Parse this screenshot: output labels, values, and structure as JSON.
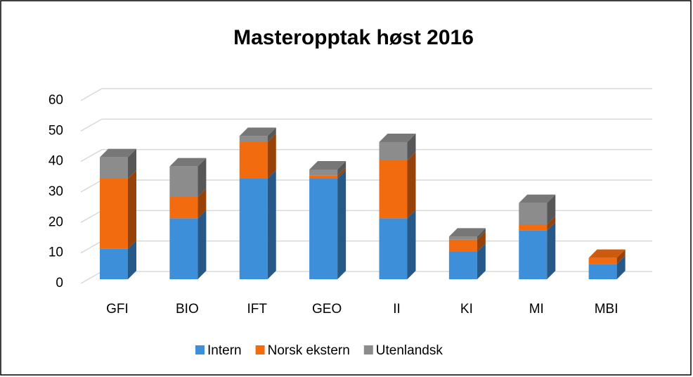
{
  "chart_data": {
    "type": "bar3d_stacked",
    "title": "Masteropptak høst 2016",
    "categories": [
      "GFI",
      "BIO",
      "IFT",
      "GEO",
      "II",
      "KI",
      "MI",
      "MBI"
    ],
    "series": [
      {
        "name": "Intern",
        "color": "#3d8fd9",
        "values": [
          10,
          20,
          33,
          33,
          20,
          9,
          16,
          5
        ]
      },
      {
        "name": "Norsk ekstern",
        "color": "#f26b0f",
        "values": [
          23,
          7,
          12,
          1,
          19,
          4,
          2,
          2
        ]
      },
      {
        "name": "Utenlandsk",
        "color": "#8c8c8c",
        "values": [
          7,
          10,
          2,
          2,
          6,
          1,
          7,
          0
        ]
      }
    ],
    "ylim": [
      0,
      60
    ],
    "yticks": [
      0,
      10,
      20,
      30,
      40,
      50,
      60
    ],
    "grid": true,
    "legend": "bottom"
  }
}
